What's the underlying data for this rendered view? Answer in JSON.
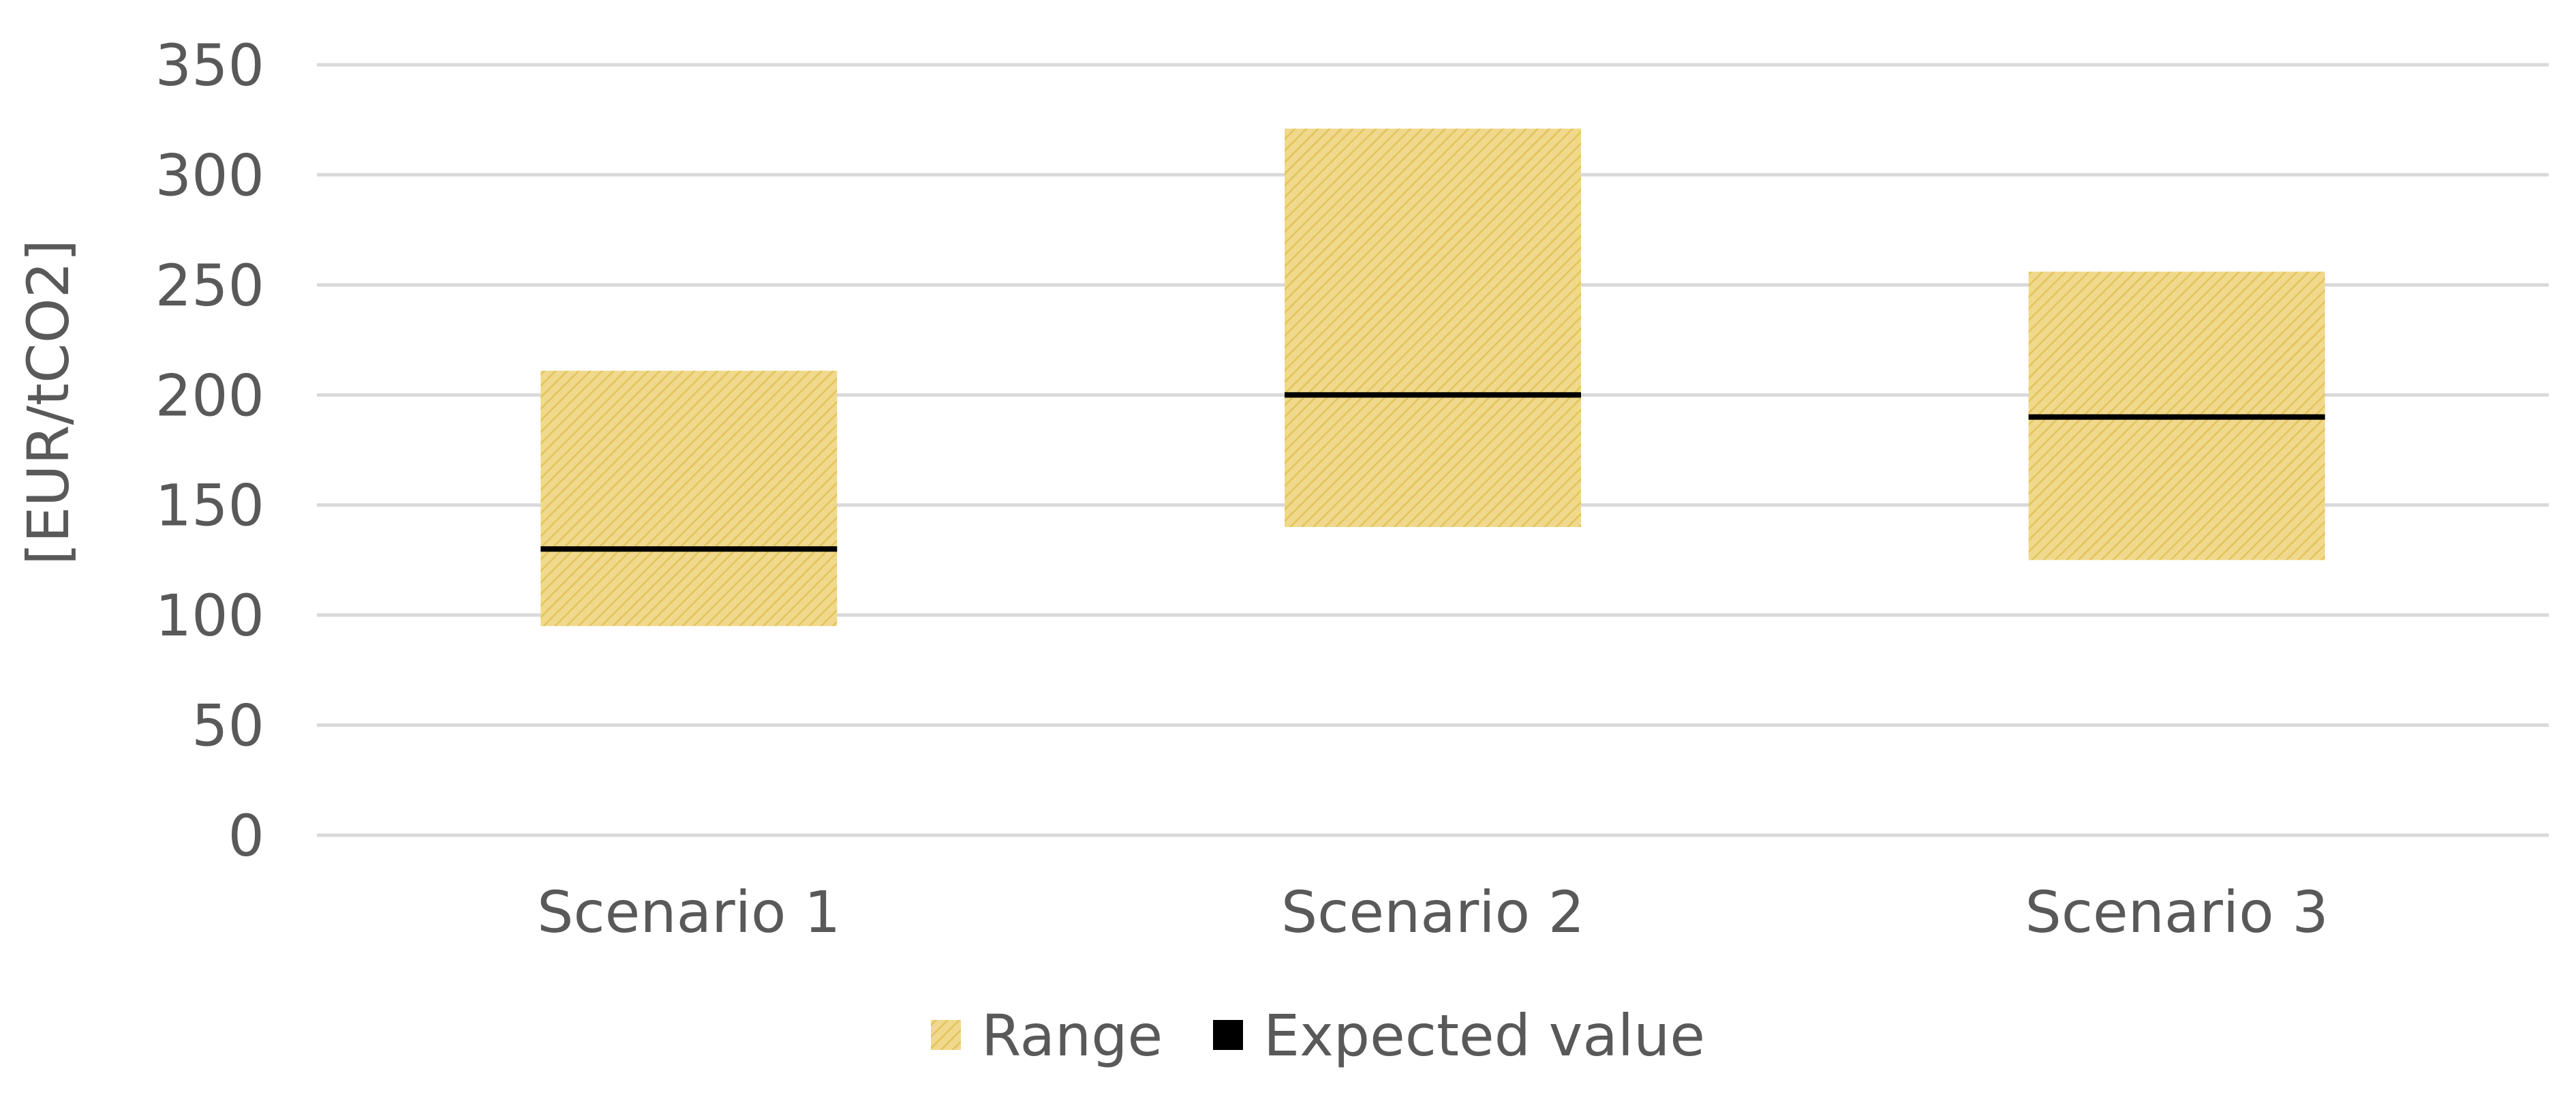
{
  "chart_data": {
    "type": "bar",
    "subtype": "floating-range-with-marker",
    "title": "",
    "xlabel": "",
    "ylabel": "[EUR/tCO2]",
    "ylim": [
      0,
      350
    ],
    "yticks": [
      0,
      50,
      100,
      150,
      200,
      250,
      300,
      350
    ],
    "grid": true,
    "legend_position": "bottom",
    "categories": [
      "Scenario 1",
      "Scenario 2",
      "Scenario 3"
    ],
    "series": [
      {
        "name": "Range",
        "style": "hatched-fill",
        "color": "#f0d98c",
        "low": [
          95,
          140,
          125
        ],
        "high": [
          211,
          321,
          256
        ]
      },
      {
        "name": "Expected value",
        "style": "marker-line",
        "color": "#000000",
        "values": [
          130,
          200,
          190
        ]
      }
    ],
    "colors": {
      "grid": "#d9d9d9",
      "text": "#595959",
      "range_fill": "#f0d98c",
      "range_hatch": "#e3c35c",
      "expected": "#000000"
    }
  }
}
